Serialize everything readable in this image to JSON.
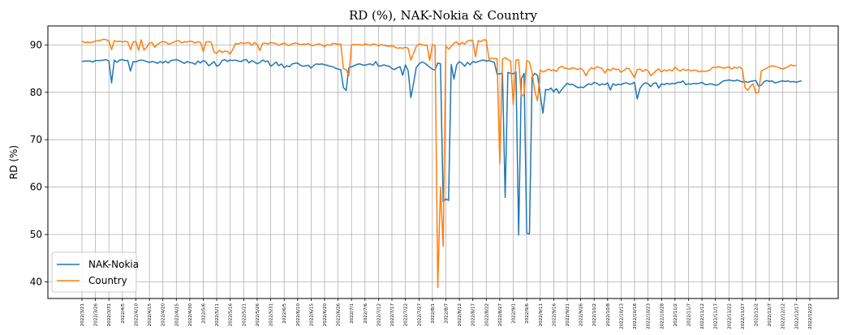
{
  "chart_data": {
    "type": "line",
    "title": "RD (%), NAK-Nokia & Country",
    "xlabel": "",
    "ylabel": "RD (%)",
    "ylim": [
      36.5,
      94
    ],
    "yticks": [
      40,
      50,
      60,
      70,
      80,
      90
    ],
    "grid": true,
    "legend_position": "lower-left",
    "x_tick_labels": [
      "2022/3/21",
      "2022/3/26",
      "2022/3/31",
      "2022/4/5",
      "2022/4/10",
      "2022/4/15",
      "2022/4/20",
      "2022/4/25",
      "2022/4/30",
      "2022/5/6",
      "2022/5/11",
      "2022/5/16",
      "2022/5/21",
      "2022/5/26",
      "2022/5/31",
      "2022/6/5",
      "2022/6/10",
      "2022/6/15",
      "2022/6/20",
      "2022/6/26",
      "2022/7/1",
      "2022/7/6",
      "2022/7/12",
      "2022/7/17",
      "2022/7/22",
      "2022/7/27",
      "2022/8/1",
      "2022/8/7",
      "2022/8/12",
      "2022/8/17",
      "2022/8/22",
      "2022/8/27",
      "2022/9/1",
      "2022/9/6",
      "2022/9/11",
      "2022/9/16",
      "2022/9/21",
      "2022/9/26",
      "2022/10/2",
      "2022/10/8",
      "2022/10/13",
      "2022/10/18",
      "2022/10/23",
      "2022/10/28",
      "2022/11/2",
      "2022/11/7",
      "2022/11/12",
      "2022/11/17",
      "2022/11/22",
      "2022/11/27",
      "2022/12/2",
      "2022/12/7",
      "2022/12/12",
      "2022/12/17",
      "2022/12/22"
    ],
    "colors": {
      "nak": "#1f77b4",
      "country": "#ff7f0e"
    },
    "series": [
      {
        "name": "NAK-Nokia",
        "key": "nak",
        "values": [
          86.5,
          86.6,
          86.6,
          86.6,
          86.4,
          86.7,
          86.7,
          86.7,
          86.8,
          86.9,
          86.6,
          82.0,
          86.8,
          86.3,
          86.8,
          86.9,
          86.7,
          86.7,
          84.5,
          86.5,
          86.4,
          86.7,
          86.8,
          86.7,
          86.5,
          86.3,
          86.5,
          86.4,
          86.1,
          86.5,
          86.2,
          86.6,
          86.2,
          86.7,
          86.8,
          86.9,
          86.7,
          86.4,
          86.1,
          86.5,
          86.3,
          86.2,
          85.9,
          86.6,
          86.2,
          86.7,
          86.4,
          85.6,
          86.0,
          86.5,
          85.5,
          85.8,
          86.7,
          86.9,
          86.5,
          86.8,
          86.7,
          86.8,
          86.6,
          86.5,
          86.8,
          86.9,
          86.2,
          86.7,
          86.4,
          86.0,
          86.3,
          86.8,
          86.5,
          86.6,
          85.5,
          85.9,
          86.4,
          85.6,
          86.0,
          85.2,
          85.6,
          85.4,
          86.0,
          86.1,
          86.2,
          85.7,
          85.5,
          85.6,
          85.7,
          85.1,
          85.7,
          86.0,
          85.9,
          86.0,
          85.8,
          85.7,
          85.5,
          85.4,
          85.1,
          84.9,
          84.8,
          81.0,
          80.4,
          85.2,
          85.4,
          85.6,
          85.9,
          86.0,
          85.8,
          85.7,
          85.9,
          86.0,
          85.7,
          86.5,
          85.5,
          85.6,
          85.8,
          85.6,
          85.5,
          85.0,
          84.8,
          85.2,
          85.4,
          83.6,
          85.8,
          84.6,
          78.9,
          81.8,
          85.2,
          85.9,
          86.4,
          86.2,
          85.8,
          85.3,
          84.9,
          84.7,
          86.2,
          86.0,
          56.9,
          57.5,
          57.2,
          85.9,
          82.8,
          85.8,
          86.5,
          86.1,
          85.5,
          86.3,
          85.8,
          86.5,
          86.3,
          86.5,
          86.7,
          86.8,
          86.6,
          86.7,
          86.5,
          86.3,
          83.8,
          83.9,
          84.0,
          57.8,
          84.2,
          84.0,
          83.9,
          84.3,
          49.9,
          82.8,
          84.0,
          50.3,
          50.1,
          83.2,
          84.0,
          83.6,
          79.5,
          75.6,
          80.6,
          80.5,
          80.9,
          80.1,
          80.8,
          79.8,
          80.6,
          81.3,
          81.9,
          81.6,
          81.7,
          81.3,
          81.0,
          81.1,
          81.0,
          81.4,
          81.8,
          81.6,
          82.1,
          81.9,
          81.5,
          81.8,
          81.6,
          82.0,
          80.5,
          81.8,
          81.5,
          81.7,
          81.6,
          81.9,
          82.0,
          81.7,
          81.8,
          82.1,
          78.6,
          80.8,
          81.6,
          82.0,
          81.8,
          81.2,
          81.9,
          82.0,
          80.9,
          81.8,
          81.6,
          81.9,
          81.7,
          81.9,
          81.8,
          82.1,
          82.1,
          82.4,
          81.6,
          81.8,
          81.7,
          81.9,
          81.8,
          81.9,
          82.1,
          81.7,
          81.6,
          81.8,
          81.7,
          81.5,
          81.6,
          82.0,
          82.4,
          82.5,
          82.6,
          82.5,
          82.4,
          82.6,
          82.4,
          82.2,
          82.3,
          82.1,
          82.3,
          82.4,
          82.5,
          81.3,
          81.5,
          82.2,
          82.5,
          82.3,
          82.4,
          82.0,
          82.1,
          82.3,
          82.4,
          82.3,
          82.4,
          82.2,
          82.3,
          82.1,
          82.3,
          82.4
        ]
      },
      {
        "name": "Country",
        "key": "country",
        "values": [
          90.8,
          90.5,
          90.6,
          90.5,
          90.6,
          90.8,
          90.9,
          91.0,
          91.2,
          91.1,
          90.8,
          89.0,
          90.9,
          90.7,
          90.8,
          90.6,
          90.8,
          90.6,
          89.0,
          90.6,
          90.7,
          88.9,
          91.1,
          88.9,
          89.5,
          90.4,
          90.5,
          89.5,
          90.1,
          90.5,
          90.7,
          90.6,
          90.2,
          90.3,
          90.6,
          90.8,
          90.9,
          90.4,
          90.7,
          90.6,
          90.8,
          90.7,
          90.4,
          90.7,
          90.5,
          88.6,
          90.6,
          90.7,
          90.5,
          88.5,
          88.2,
          88.9,
          88.4,
          88.7,
          88.6,
          88.1,
          89.1,
          90.3,
          90.2,
          90.5,
          90.3,
          90.4,
          90.5,
          89.9,
          90.5,
          90.1,
          88.8,
          90.3,
          90.4,
          90.2,
          90.5,
          90.4,
          90.3,
          89.9,
          90.2,
          90.4,
          90.0,
          89.9,
          90.2,
          90.4,
          90.3,
          90.0,
          90.2,
          90.1,
          90.3,
          89.9,
          89.9,
          90.1,
          90.2,
          90.0,
          89.6,
          90.1,
          89.9,
          90.3,
          90.3,
          90.1,
          90.2,
          85.0,
          84.8,
          83.5,
          90.0,
          90.1,
          90.0,
          90.1,
          89.9,
          90.2,
          90.1,
          89.9,
          90.2,
          90.1,
          89.8,
          90.1,
          89.9,
          89.8,
          89.7,
          89.8,
          89.6,
          89.3,
          89.4,
          89.3,
          89.5,
          89.3,
          86.8,
          88.2,
          89.7,
          90.2,
          90.1,
          89.9,
          90.0,
          86.7,
          90.1,
          89.8,
          38.8,
          60.0,
          47.5,
          89.8,
          89.1,
          89.7,
          90.4,
          90.6,
          90.0,
          90.5,
          90.2,
          90.8,
          91.0,
          90.9,
          87.5,
          90.9,
          90.7,
          91.1,
          91.0,
          87.0,
          87.2,
          87.1,
          87.1,
          64.9,
          87.0,
          87.3,
          86.9,
          86.6,
          77.4,
          86.8,
          86.9,
          79.1,
          79.6,
          86.7,
          86.4,
          84.1,
          80.2,
          78.2,
          84.7,
          84.3,
          84.5,
          84.9,
          84.6,
          84.8,
          84.4,
          85.2,
          85.5,
          85.1,
          85.0,
          84.9,
          85.2,
          85.0,
          84.8,
          85.1,
          84.6,
          83.5,
          84.6,
          85.2,
          84.9,
          85.4,
          85.2,
          85.0,
          84.1,
          84.9,
          84.6,
          85.1,
          84.8,
          84.9,
          84.2,
          84.6,
          85.1,
          85.0,
          84.0,
          83.1,
          84.8,
          84.9,
          84.4,
          84.8,
          84.6,
          83.5,
          84.0,
          84.6,
          84.9,
          84.3,
          84.7,
          84.5,
          84.8,
          84.5,
          85.3,
          84.8,
          84.5,
          84.9,
          84.6,
          84.8,
          84.5,
          84.7,
          84.6,
          84.3,
          84.5,
          84.4,
          84.5,
          84.7,
          85.3,
          85.2,
          85.4,
          85.3,
          85.1,
          85.2,
          85.4,
          84.9,
          85.3,
          85.1,
          85.4,
          84.8,
          81.0,
          80.4,
          81.3,
          81.8,
          79.8,
          80.0,
          84.5,
          84.8,
          85.1,
          85.4,
          85.6,
          85.5,
          85.3,
          85.1,
          84.9,
          85.2,
          85.4,
          85.8,
          85.6,
          85.7
        ]
      }
    ]
  }
}
